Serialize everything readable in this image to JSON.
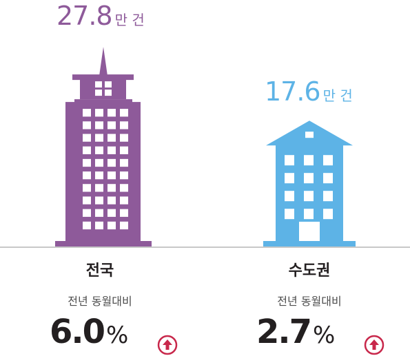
{
  "chart_data": {
    "type": "bar",
    "unit": "만 건",
    "categories": [
      "전국",
      "수도권"
    ],
    "values": [
      27.8,
      17.6
    ],
    "value_labels": [
      "27.8",
      "17.6"
    ],
    "comparison_label": "전년 동월대비",
    "yoy_change": [
      "6.0",
      "2.7"
    ],
    "yoy_unit": "%",
    "yoy_direction": [
      "up",
      "up"
    ],
    "colors": [
      "#8e5a9a",
      "#5db3e6"
    ],
    "arrow_color": "#c8284b"
  }
}
